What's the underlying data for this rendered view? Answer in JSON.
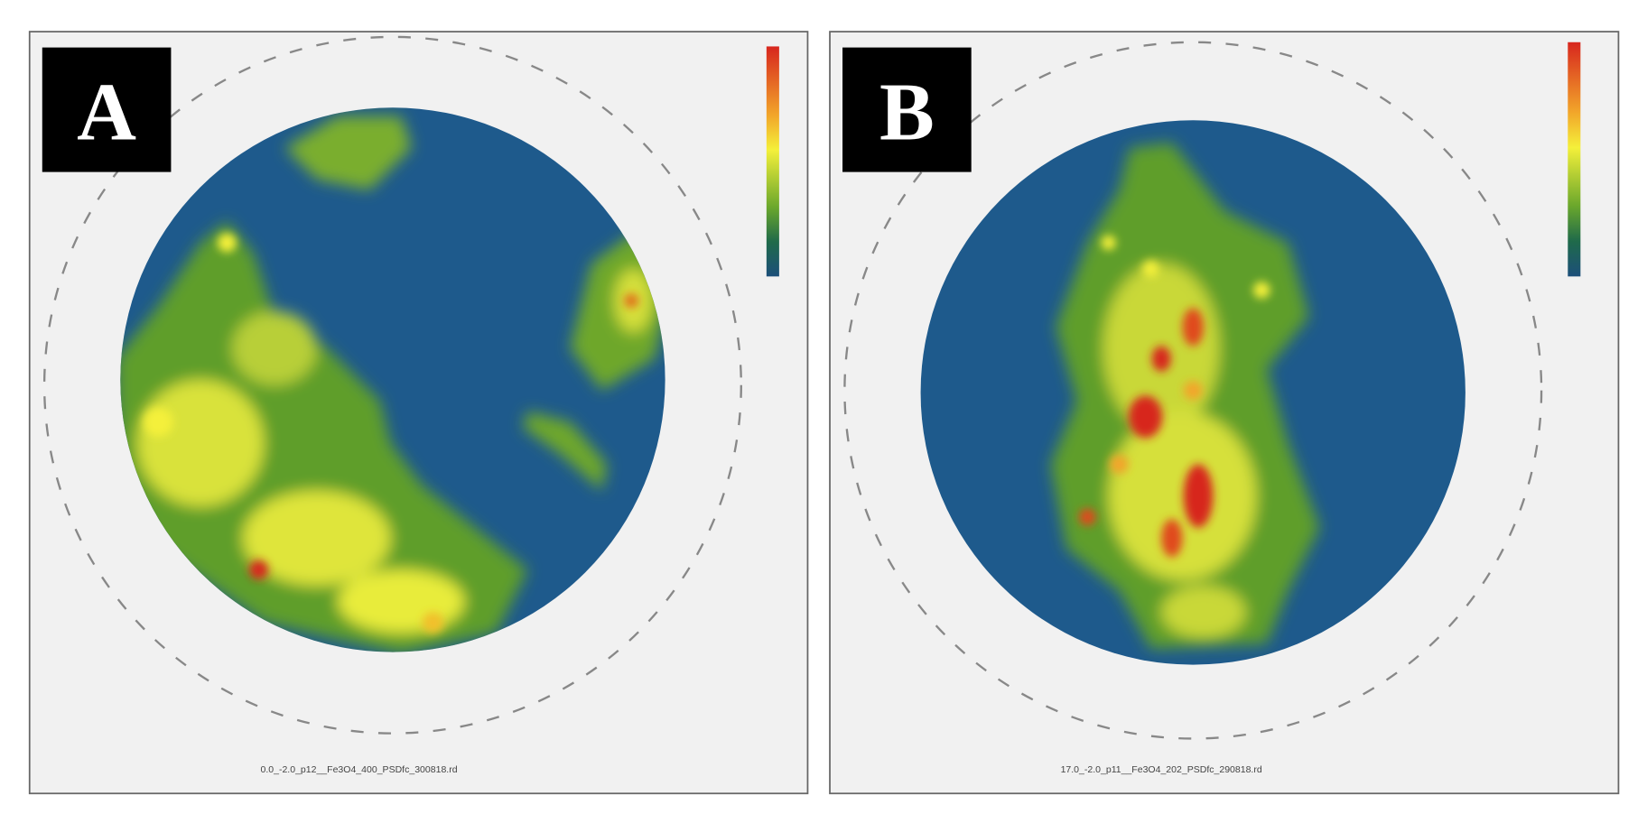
{
  "panels": [
    {
      "label": "A",
      "file": "0.0_-2.0_p12__Fe3O4_400_PSDfc_300818.rd"
    },
    {
      "label": "B",
      "file": "17.0_-2.0_p11__Fe3O4_202_PSDfc_290818.rd"
    }
  ]
}
